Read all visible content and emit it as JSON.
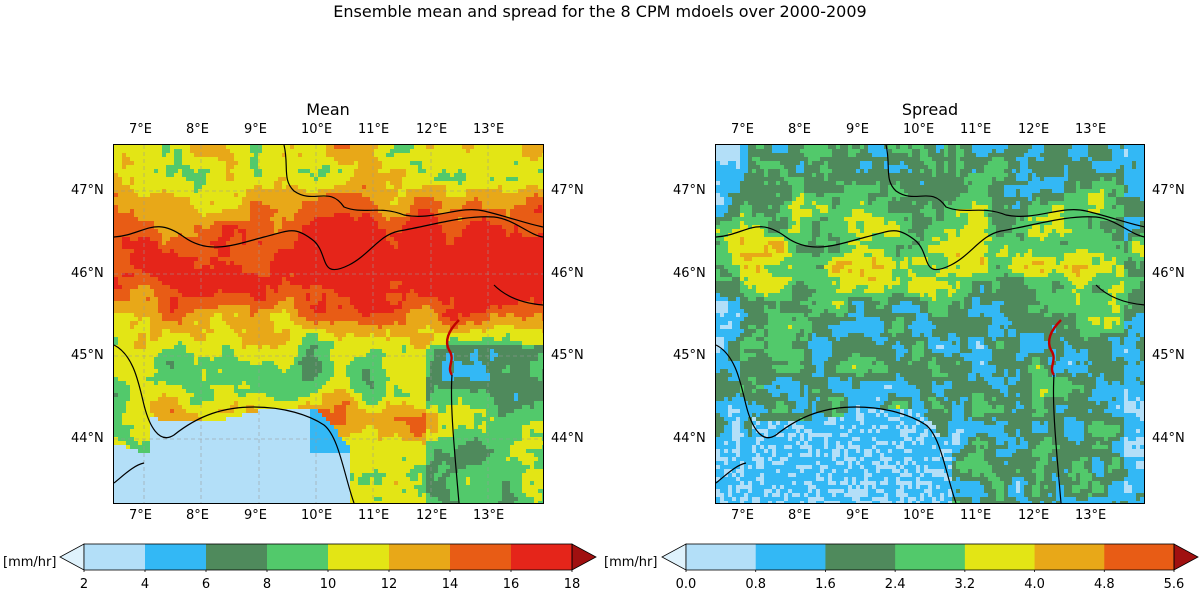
{
  "figure_title": "Ensemble mean and spread for the 8 CPM mdoels over 2000-2009",
  "panels": {
    "mean": {
      "title": "Mean",
      "lon_labels": [
        "7°E",
        "8°E",
        "9°E",
        "10°E",
        "11°E",
        "12°E",
        "13°E"
      ],
      "lat_labels": [
        "47°N",
        "46°N",
        "45°N",
        "44°N"
      ],
      "colorbar": {
        "unit_label": "[mm/hr]",
        "tick_labels": [
          "2",
          "4",
          "6",
          "8",
          "10",
          "12",
          "14",
          "16",
          "18"
        ],
        "colors": [
          "#b3dff8",
          "#33b8f5",
          "#4f8a5c",
          "#52c96b",
          "#e3e515",
          "#e8a818",
          "#e85c15",
          "#e5251a"
        ],
        "under_color": "#dff2fc",
        "over_color": "#a01010"
      }
    },
    "spread": {
      "title": "Spread",
      "lon_labels": [
        "7°E",
        "8°E",
        "9°E",
        "10°E",
        "11°E",
        "12°E",
        "13°E"
      ],
      "lat_labels": [
        "47°N",
        "46°N",
        "45°N",
        "44°N"
      ],
      "colorbar": {
        "unit_label": "[mm/hr]",
        "tick_labels": [
          "0.0",
          "0.8",
          "1.6",
          "2.4",
          "3.2",
          "4.0",
          "4.8",
          "5.6"
        ],
        "colors": [
          "#b3dff8",
          "#33b8f5",
          "#4f8a5c",
          "#52c96b",
          "#e3e515",
          "#e8a818",
          "#e85c15"
        ],
        "under_color": "#dff2fc",
        "over_color": "#a01010"
      }
    }
  }
}
